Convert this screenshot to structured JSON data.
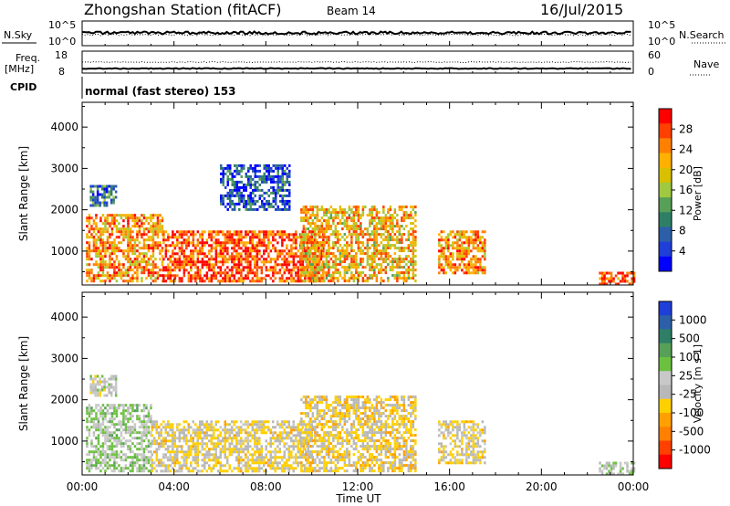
{
  "header": {
    "station": "Zhongshan Station (fitACF)",
    "beam": "Beam 14",
    "date": "16/Jul/2015"
  },
  "strip": {
    "nsky_label": "N.Sky",
    "nsky_ticks": [
      "10^5",
      "10^0"
    ],
    "nsearch_label": "N.Search",
    "nsearch_ticks": [
      "10^5",
      "10^0"
    ],
    "freq_label_1": "Freq.",
    "freq_label_2": "[MHz]",
    "freq_ticks": [
      "18",
      "8"
    ],
    "nave_label": "Nave",
    "nave_ticks": [
      "60",
      "0"
    ],
    "cpid_label": "CPID",
    "cpid_text": "normal (fast stereo) 153"
  },
  "panels": {
    "ylabel": "Slant Range [km]",
    "yticks": [
      "4000",
      "3000",
      "2000",
      "1000"
    ],
    "xticks": [
      "00:00",
      "04:00",
      "08:00",
      "12:00",
      "16:00",
      "20:00",
      "00:00"
    ],
    "xlabel": "Time UT"
  },
  "power_scale": {
    "label": "Power [dB]",
    "ticks": [
      "28",
      "24",
      "20",
      "16",
      "12",
      "8",
      "4"
    ],
    "colors": [
      "#ff0000",
      "#ff4000",
      "#ff8000",
      "#ffb000",
      "#d8c000",
      "#a0c840",
      "#58a058",
      "#2f7f66",
      "#2c5fa8",
      "#1f3fd8",
      "#0000ff"
    ]
  },
  "velocity_scale": {
    "label": "Velocity [m s-1]",
    "ticks": [
      "1000",
      "500",
      "100",
      "25",
      "-25",
      "-100",
      "-500",
      "-1000"
    ],
    "colors": [
      "#1f3fd8",
      "#2c5fa8",
      "#2f7f66",
      "#58a058",
      "#6cc040",
      "#c8c8c8",
      "#b8b8b8",
      "#ffd000",
      "#ffa000",
      "#ff8000",
      "#ff4000",
      "#ff0000"
    ]
  },
  "chart_data": [
    {
      "type": "heatmap",
      "title": "Power",
      "xlabel": "Time UT",
      "ylabel": "Slant Range [km]",
      "xlim": [
        "00:00",
        "24:00"
      ],
      "ylim": [
        180,
        4600
      ],
      "colorbar": "Power [dB]",
      "color_range": [
        0,
        30
      ],
      "note_regions": [
        {
          "t_start": "00:20",
          "t_end": "01:30",
          "range_start": 2100,
          "range_end": 2600,
          "value": 8
        },
        {
          "t_start": "00:10",
          "t_end": "03:30",
          "range_start": 300,
          "range_end": 1900,
          "value": 22
        },
        {
          "t_start": "03:30",
          "t_end": "10:30",
          "range_start": 300,
          "range_end": 1500,
          "value": 26
        },
        {
          "t_start": "06:00",
          "t_end": "09:00",
          "range_start": 2000,
          "range_end": 3100,
          "value": 6
        },
        {
          "t_start": "09:30",
          "t_end": "14:30",
          "range_start": 300,
          "range_end": 2100,
          "value": 20
        },
        {
          "t_start": "15:30",
          "t_end": "17:30",
          "range_start": 500,
          "range_end": 1500,
          "value": 22
        },
        {
          "t_start": "22:30",
          "t_end": "24:00",
          "range_start": 200,
          "range_end": 500,
          "value": 26
        }
      ]
    },
    {
      "type": "heatmap",
      "title": "Velocity",
      "xlabel": "Time UT",
      "ylabel": "Slant Range [km]",
      "xlim": [
        "00:00",
        "24:00"
      ],
      "ylim": [
        180,
        4600
      ],
      "colorbar": "Velocity [m s-1]",
      "color_range": [
        -1000,
        1000
      ],
      "note_regions": [
        {
          "t_start": "00:10",
          "t_end": "03:00",
          "range_start": 300,
          "range_end": 1900,
          "value": 150
        },
        {
          "t_start": "00:20",
          "t_end": "01:30",
          "range_start": 2100,
          "range_end": 2600,
          "value": 0
        },
        {
          "t_start": "03:00",
          "t_end": "10:00",
          "range_start": 300,
          "range_end": 1500,
          "value": -150
        },
        {
          "t_start": "09:30",
          "t_end": "14:30",
          "range_start": 300,
          "range_end": 2100,
          "value": -200
        },
        {
          "t_start": "15:30",
          "t_end": "17:30",
          "range_start": 500,
          "range_end": 1500,
          "value": -150
        },
        {
          "t_start": "22:30",
          "t_end": "24:00",
          "range_start": 200,
          "range_end": 500,
          "value": 50
        }
      ]
    }
  ]
}
